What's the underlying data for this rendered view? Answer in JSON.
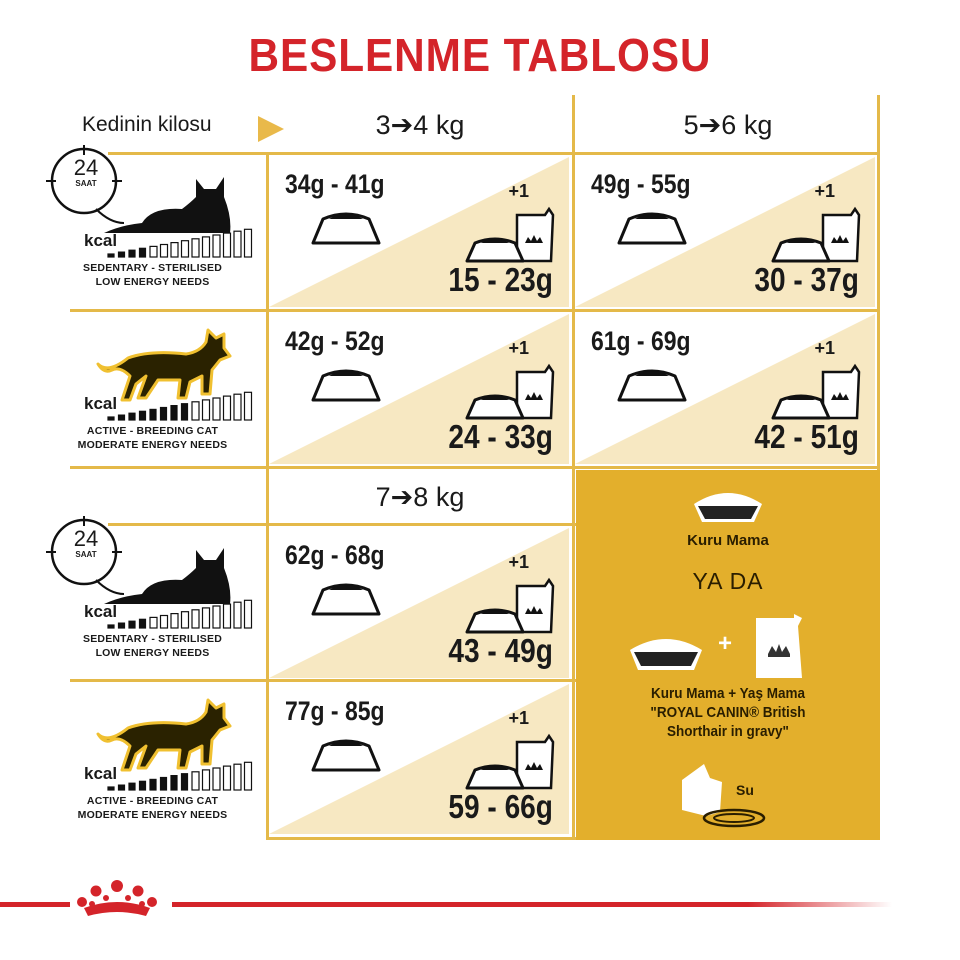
{
  "title": "BESLENME TABLOSU",
  "weight_label": "Kedinin kilosu",
  "columns": [
    "3➔4 kg",
    "5➔6 kg",
    "7➔8 kg"
  ],
  "clock": {
    "number": "24",
    "unit": "SAAT"
  },
  "profiles": {
    "sedentary": {
      "kcal": "kcal",
      "line1": "SEDENTARY - STERILISED",
      "line2": "LOW ENERGY NEEDS",
      "energy_level": 4,
      "energy_scale": 14
    },
    "active": {
      "kcal": "kcal",
      "line1": "ACTIVE - BREEDING CAT",
      "line2": "MODERATE ENERGY NEEDS",
      "energy_level": 8,
      "energy_scale": 14
    }
  },
  "wet_pouch_label": "+1",
  "table": [
    {
      "weight": "3➔4 kg",
      "profile": "sedentary",
      "dry": "34g - 41g",
      "mixed_dry": "15 - 23g"
    },
    {
      "weight": "5➔6 kg",
      "profile": "sedentary",
      "dry": "49g - 55g",
      "mixed_dry": "30 - 37g"
    },
    {
      "weight": "3➔4 kg",
      "profile": "active",
      "dry": "42g - 52g",
      "mixed_dry": "24 - 33g"
    },
    {
      "weight": "5➔6 kg",
      "profile": "active",
      "dry": "61g - 69g",
      "mixed_dry": "42 - 51g"
    },
    {
      "weight": "7➔8 kg",
      "profile": "sedentary",
      "dry": "62g - 68g",
      "mixed_dry": "43 - 49g"
    },
    {
      "weight": "7➔8 kg",
      "profile": "active",
      "dry": "77g - 85g",
      "mixed_dry": "59 - 66g"
    }
  ],
  "legend": {
    "dry_label": "Kuru Mama",
    "or": "YA DA",
    "plus": "+",
    "mixed_line1": "Kuru Mama + Yaş Mama",
    "mixed_line2": "\"ROYAL CANIN® British",
    "mixed_line3": "Shorthair in gravy\"",
    "water": "Su"
  },
  "colors": {
    "brand_red": "#d4242a",
    "gold": "#e3af2c",
    "beige": "#f7e8c2",
    "line": "#e4b949"
  },
  "icons": [
    "clock-24h-icon",
    "lying-cat-icon",
    "walking-cat-icon",
    "kcal-meter-icon",
    "dry-food-bowl-icon",
    "wet-food-pouch-icon",
    "water-icon",
    "royal-canin-crown-logo"
  ]
}
